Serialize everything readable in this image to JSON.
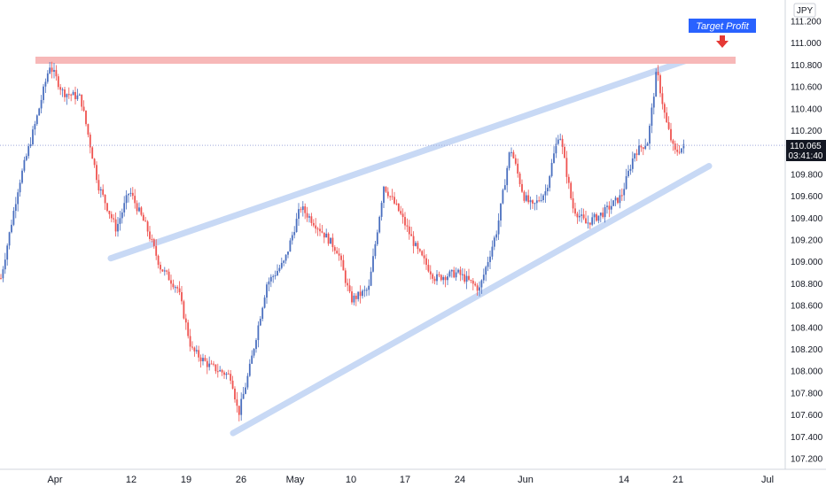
{
  "currency_label": "JPY",
  "price_badge": {
    "price": "110.065",
    "countdown": "03:41:40"
  },
  "annotation": {
    "text": "Target Profit"
  },
  "colors": {
    "up": "#4a6fbf",
    "down": "#ef5350",
    "channel": "#c8d9f5",
    "resistance": "#f7b8b8",
    "annotation_bg": "#2962ff",
    "arrow": "#e53935",
    "badge_bg": "#131722"
  },
  "chart_data": {
    "type": "candlestick",
    "y_ticks": [
      "111.200",
      "111.000",
      "110.800",
      "110.600",
      "110.400",
      "110.200",
      "110.000",
      "109.800",
      "109.600",
      "109.400",
      "109.200",
      "109.000",
      "108.800",
      "108.600",
      "108.400",
      "108.200",
      "108.000",
      "107.800",
      "107.600",
      "107.400",
      "107.200"
    ],
    "x_ticks": [
      "Apr",
      "12",
      "19",
      "26",
      "May",
      "10",
      "17",
      "24",
      "Jun",
      "14",
      "21",
      "Jul"
    ],
    "ylim": [
      107.1,
      111.3
    ],
    "last_price": 110.065,
    "resistance_level": 110.85,
    "lower_channel": [
      [
        107.45,
        109.9
      ]
    ],
    "upper_channel": [
      [
        109.0,
        110.9
      ]
    ]
  }
}
